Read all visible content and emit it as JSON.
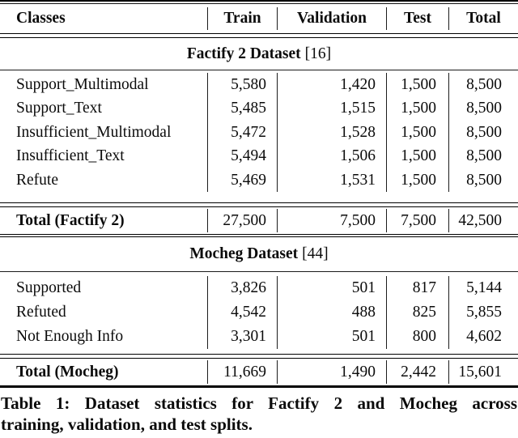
{
  "table": {
    "columns": [
      "Classes",
      "Train",
      "Validation",
      "Test",
      "Total"
    ],
    "sections": [
      {
        "title": "Factify 2 Dataset",
        "citation": "[16]",
        "rows": [
          {
            "label": "Support_Multimodal",
            "values": [
              "5,580",
              "1,420",
              "1,500",
              "8,500"
            ]
          },
          {
            "label": "Support_Text",
            "values": [
              "5,485",
              "1,515",
              "1,500",
              "8,500"
            ]
          },
          {
            "label": "Insufficient_Multimodal",
            "values": [
              "5,472",
              "1,528",
              "1,500",
              "8,500"
            ]
          },
          {
            "label": "Insufficient_Text",
            "values": [
              "5,494",
              "1,506",
              "1,500",
              "8,500"
            ]
          },
          {
            "label": "Refute",
            "values": [
              "5,469",
              "1,531",
              "1,500",
              "8,500"
            ]
          }
        ],
        "total": {
          "label": "Total (Factify 2)",
          "values": [
            "27,500",
            "7,500",
            "7,500",
            "42,500"
          ]
        }
      },
      {
        "title": "Mocheg Dataset",
        "citation": "[44]",
        "rows": [
          {
            "label": "Supported",
            "values": [
              "3,826",
              "501",
              "817",
              "5,144"
            ]
          },
          {
            "label": "Refuted",
            "values": [
              "4,542",
              "488",
              "825",
              "5,855"
            ]
          },
          {
            "label": "Not Enough Info",
            "values": [
              "3,301",
              "501",
              "800",
              "4,602"
            ]
          }
        ],
        "total": {
          "label": "Total (Mocheg)",
          "values": [
            "11,669",
            "1,490",
            "2,442",
            "15,601"
          ]
        }
      }
    ],
    "caption": {
      "line1": "Table 1: Dataset statistics for Factify 2 and Mocheg across",
      "line2": "training, validation, and test splits."
    },
    "colors": {
      "text": "#0b0b0b",
      "rule": "#000000",
      "background": "#ffffff"
    }
  }
}
